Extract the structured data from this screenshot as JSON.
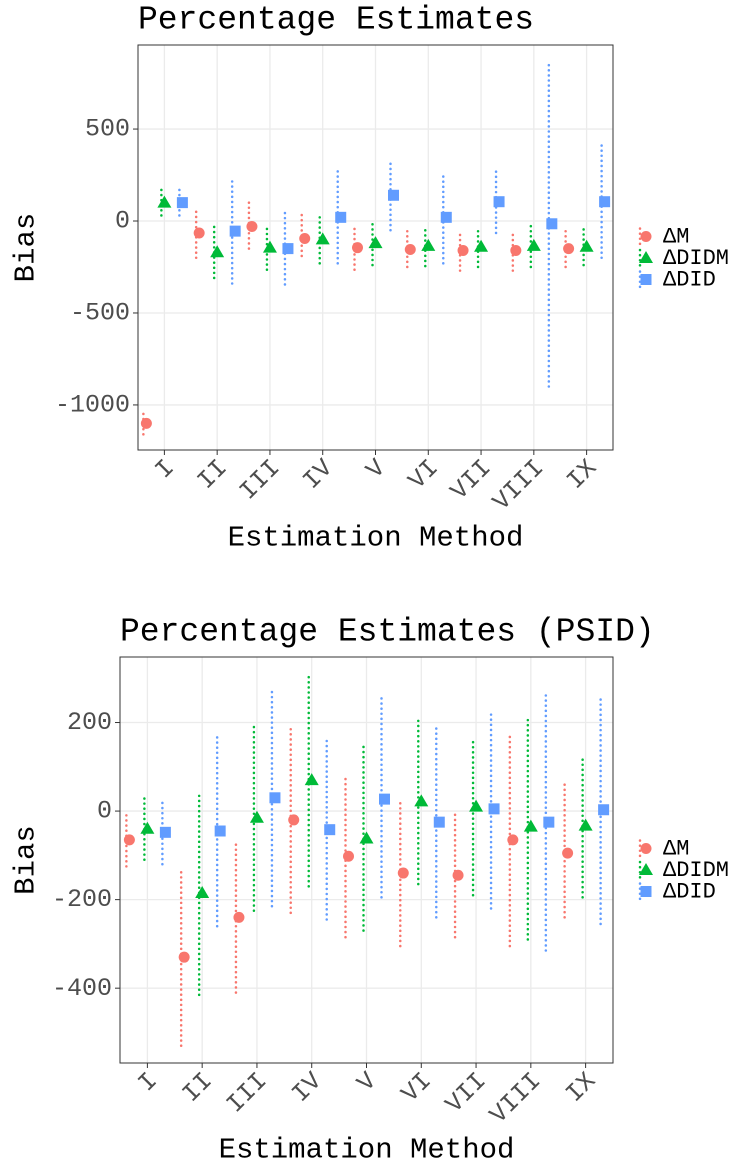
{
  "chart_data": [
    {
      "type": "pointrange",
      "title": "Percentage Estimates",
      "xlabel": "Estimation Method",
      "ylabel": "Bias",
      "categories": [
        "I",
        "II",
        "III",
        "IV",
        "V",
        "VI",
        "VII",
        "VIII",
        "IX"
      ],
      "ylim": [
        -1245,
        957
      ],
      "yticks": [
        500,
        0,
        -500,
        -1000
      ],
      "grid": true,
      "legend": "right",
      "series": [
        {
          "name": "ΔM",
          "color": "#f8766d",
          "shape": "circle",
          "values": [
            -1100,
            -65,
            -30,
            -95,
            -145,
            -155,
            -160,
            -160,
            -150
          ],
          "lower": [
            -1160,
            -200,
            -150,
            -190,
            -265,
            -250,
            -270,
            -270,
            -250
          ],
          "upper": [
            -1040,
            70,
            100,
            40,
            -30,
            -55,
            -55,
            -50,
            -55
          ]
        },
        {
          "name": "ΔDIDM",
          "color": "#00ba38",
          "shape": "triangle",
          "values": [
            100,
            -170,
            -145,
            -100,
            -120,
            -135,
            -140,
            -135,
            -140
          ],
          "lower": [
            30,
            -310,
            -265,
            -230,
            -240,
            -245,
            -250,
            -250,
            -240
          ],
          "upper": [
            170,
            -30,
            -35,
            25,
            0,
            -25,
            -40,
            -20,
            -40
          ]
        },
        {
          "name": "ΔDID",
          "color": "#619cff",
          "shape": "square",
          "values": [
            100,
            -55,
            -150,
            20,
            140,
            20,
            105,
            -15,
            105
          ],
          "lower": [
            30,
            -340,
            -345,
            -230,
            -50,
            -230,
            -65,
            -900,
            -200
          ],
          "upper": [
            175,
            235,
            45,
            270,
            330,
            265,
            280,
            860,
            430
          ]
        }
      ]
    },
    {
      "type": "pointrange",
      "title": "Percentage Estimates (PSID)",
      "xlabel": "Estimation Method",
      "ylabel": "Bias",
      "categories": [
        "I",
        "II",
        "III",
        "IV",
        "V",
        "VI",
        "VII",
        "VIII",
        "IX"
      ],
      "ylim": [
        -569,
        348
      ],
      "yticks": [
        200,
        0,
        -200,
        -400
      ],
      "grid": true,
      "legend": "right",
      "series": [
        {
          "name": "ΔM",
          "color": "#f8766d",
          "shape": "circle",
          "values": [
            -65,
            -330,
            -240,
            -20,
            -102,
            -140,
            -145,
            -65,
            -95
          ],
          "lower": [
            -125,
            -530,
            -410,
            -230,
            -285,
            -305,
            -285,
            -305,
            -240
          ],
          "upper": [
            -5,
            -130,
            -65,
            195,
            80,
            25,
            -5,
            170,
            60
          ]
        },
        {
          "name": "ΔDIDM",
          "color": "#00ba38",
          "shape": "triangle",
          "values": [
            -40,
            -185,
            -15,
            70,
            -62,
            22,
            10,
            -35,
            -33
          ],
          "lower": [
            -110,
            -415,
            -225,
            -170,
            -270,
            -165,
            -190,
            -290,
            -195
          ],
          "upper": [
            30,
            45,
            190,
            305,
            145,
            205,
            160,
            210,
            125
          ]
        },
        {
          "name": "ΔDID",
          "color": "#619cff",
          "shape": "square",
          "values": [
            -48,
            -45,
            30,
            -42,
            27,
            -25,
            5,
            -25,
            3
          ],
          "lower": [
            -120,
            -260,
            -215,
            -245,
            -195,
            -240,
            -220,
            -315,
            -255
          ],
          "upper": [
            20,
            175,
            275,
            165,
            260,
            190,
            225,
            270,
            260
          ]
        }
      ]
    }
  ]
}
